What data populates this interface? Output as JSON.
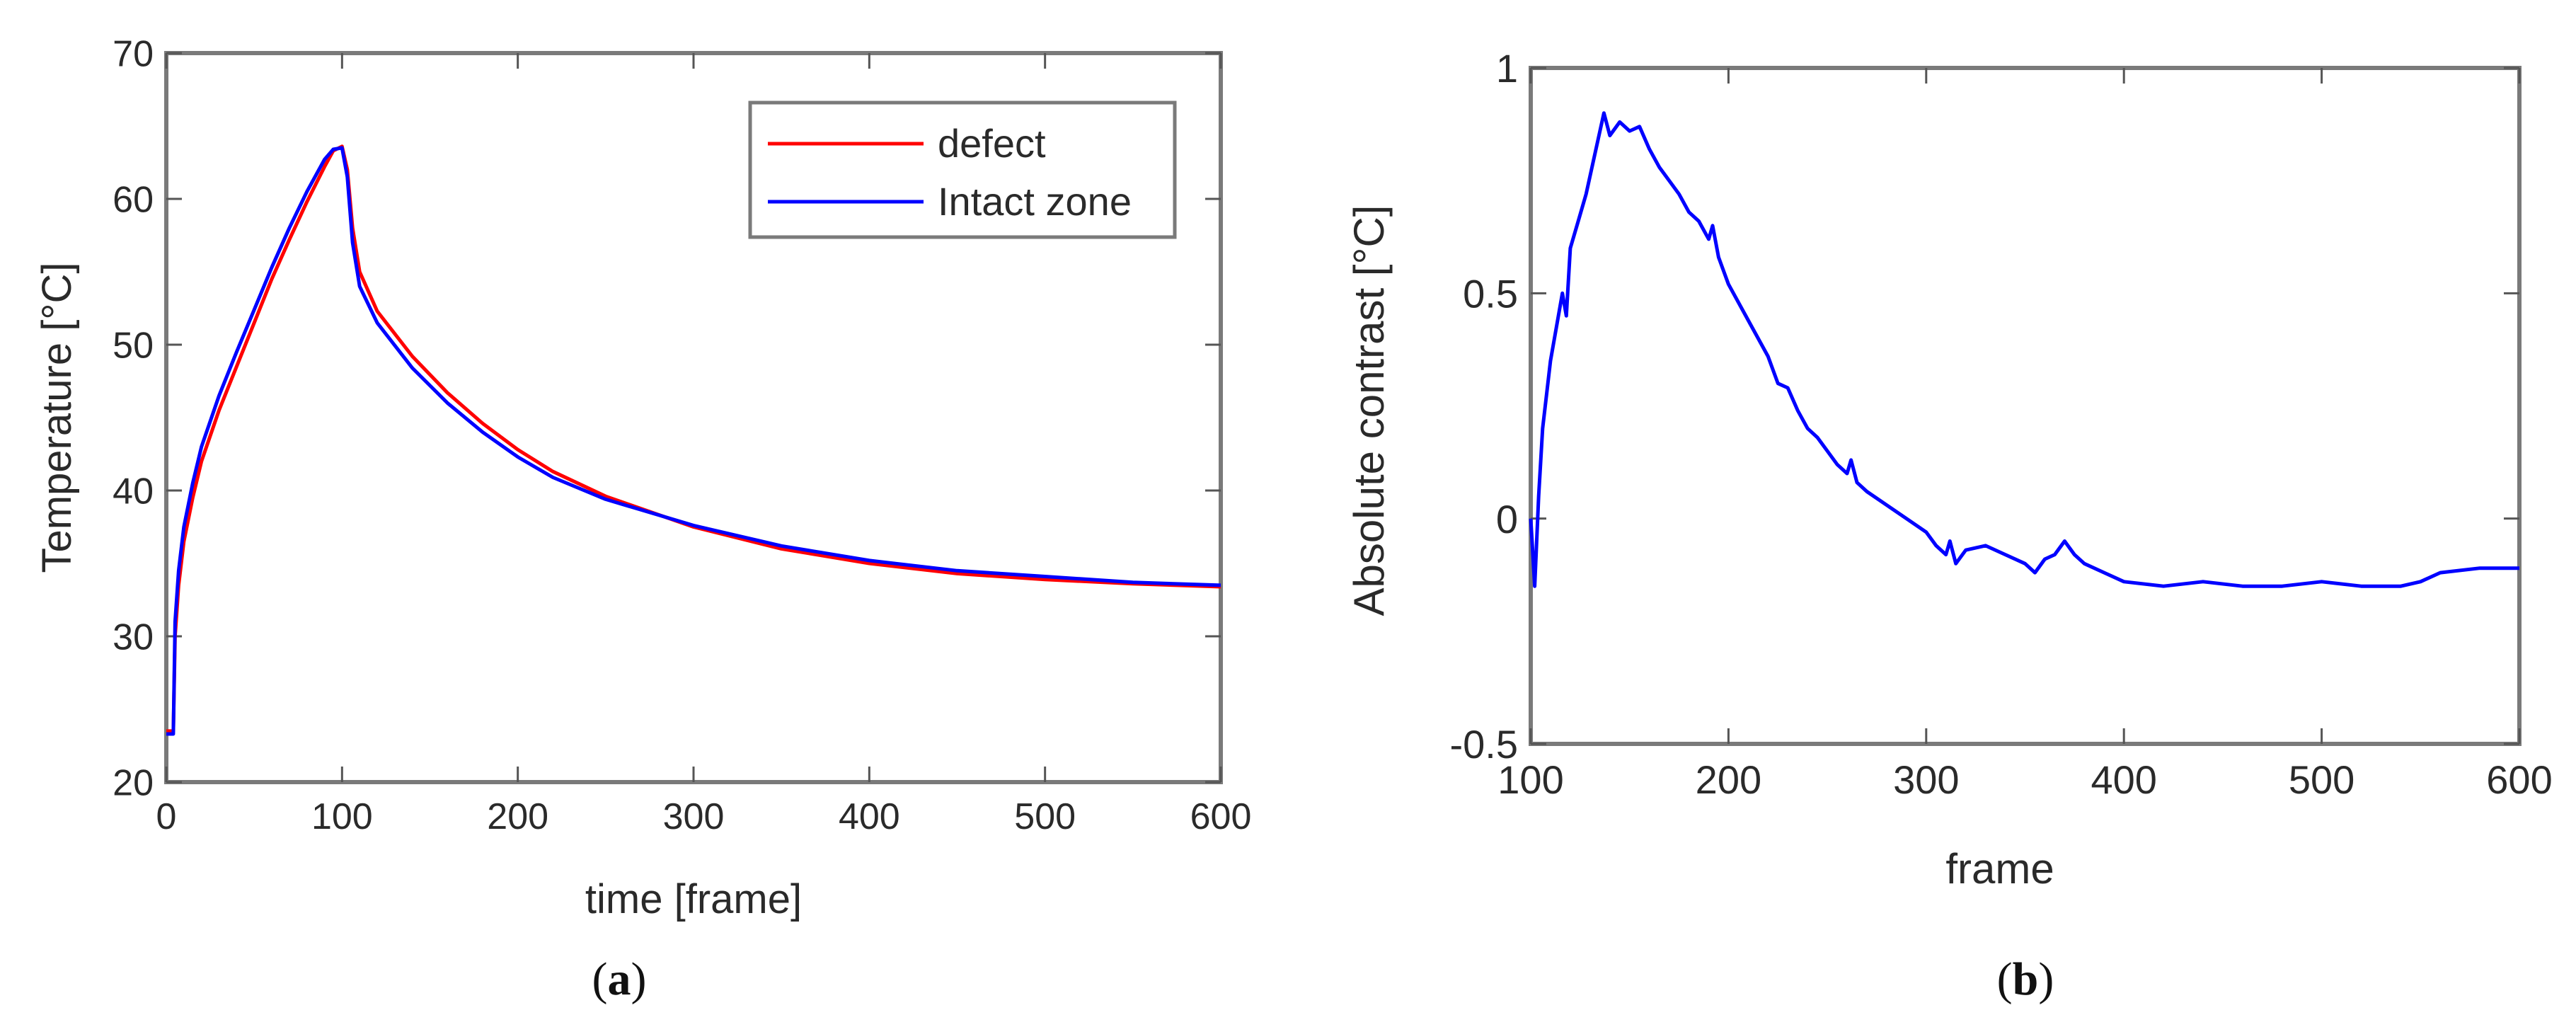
{
  "chart_data": [
    {
      "type": "line",
      "panel_label": "a",
      "title": "",
      "xlabel": "time [frame]",
      "ylabel": "Temperature [°C]",
      "xlim": [
        0,
        600
      ],
      "ylim": [
        20,
        70
      ],
      "xticks": [
        0,
        100,
        200,
        300,
        400,
        500,
        600
      ],
      "yticks": [
        20,
        30,
        40,
        50,
        60,
        70
      ],
      "legend": {
        "position": "top-right",
        "entries": [
          "defect",
          "Intact zone"
        ]
      },
      "grid": false,
      "series": [
        {
          "name": "defect",
          "color": "#ff0000",
          "points": [
            [
              0,
              23.5
            ],
            [
              4,
              23.5
            ],
            [
              5,
              30
            ],
            [
              7,
              33.5
            ],
            [
              10,
              36.5
            ],
            [
              15,
              39.5
            ],
            [
              20,
              42
            ],
            [
              30,
              45.5
            ],
            [
              40,
              48.5
            ],
            [
              50,
              51.5
            ],
            [
              60,
              54.5
            ],
            [
              70,
              57.2
            ],
            [
              80,
              59.8
            ],
            [
              90,
              62.2
            ],
            [
              95,
              63.3
            ],
            [
              100,
              63.6
            ],
            [
              103,
              62
            ],
            [
              106,
              58
            ],
            [
              110,
              55
            ],
            [
              120,
              52.3
            ],
            [
              140,
              49.2
            ],
            [
              160,
              46.7
            ],
            [
              180,
              44.6
            ],
            [
              200,
              42.8
            ],
            [
              220,
              41.3
            ],
            [
              250,
              39.6
            ],
            [
              300,
              37.5
            ],
            [
              350,
              36
            ],
            [
              400,
              35
            ],
            [
              450,
              34.3
            ],
            [
              500,
              33.9
            ],
            [
              550,
              33.6
            ],
            [
              600,
              33.4
            ]
          ]
        },
        {
          "name": "Intact zone",
          "color": "#0000ff",
          "points": [
            [
              0,
              23.3
            ],
            [
              4,
              23.3
            ],
            [
              5,
              31
            ],
            [
              7,
              34.5
            ],
            [
              10,
              37.5
            ],
            [
              15,
              40.5
            ],
            [
              20,
              43
            ],
            [
              30,
              46.5
            ],
            [
              40,
              49.5
            ],
            [
              50,
              52.4
            ],
            [
              60,
              55.3
            ],
            [
              70,
              58
            ],
            [
              80,
              60.5
            ],
            [
              90,
              62.7
            ],
            [
              95,
              63.4
            ],
            [
              100,
              63.5
            ],
            [
              103,
              61.5
            ],
            [
              106,
              57
            ],
            [
              110,
              54
            ],
            [
              120,
              51.5
            ],
            [
              140,
              48.4
            ],
            [
              160,
              46
            ],
            [
              180,
              44
            ],
            [
              200,
              42.3
            ],
            [
              220,
              40.9
            ],
            [
              250,
              39.4
            ],
            [
              300,
              37.6
            ],
            [
              350,
              36.2
            ],
            [
              400,
              35.2
            ],
            [
              450,
              34.5
            ],
            [
              500,
              34.1
            ],
            [
              550,
              33.7
            ],
            [
              600,
              33.5
            ]
          ]
        }
      ]
    },
    {
      "type": "line",
      "panel_label": "b",
      "title": "",
      "xlabel": "frame",
      "ylabel": "Absolute contrast [°C]",
      "xlim": [
        100,
        600
      ],
      "ylim": [
        -0.5,
        1
      ],
      "xticks": [
        100,
        200,
        300,
        400,
        500,
        600
      ],
      "yticks": [
        -0.5,
        0,
        0.5,
        1
      ],
      "ytick_labels": [
        "-0.5",
        "0",
        "0.5",
        "1"
      ],
      "grid": false,
      "series": [
        {
          "name": "Absolute contrast",
          "color": "#0000ff",
          "points": [
            [
              100,
              0
            ],
            [
              102,
              -0.15
            ],
            [
              104,
              0.05
            ],
            [
              106,
              0.2
            ],
            [
              110,
              0.35
            ],
            [
              114,
              0.45
            ],
            [
              116,
              0.5
            ],
            [
              118,
              0.45
            ],
            [
              120,
              0.6
            ],
            [
              124,
              0.66
            ],
            [
              128,
              0.72
            ],
            [
              132,
              0.8
            ],
            [
              135,
              0.86
            ],
            [
              137,
              0.9
            ],
            [
              140,
              0.85
            ],
            [
              145,
              0.88
            ],
            [
              150,
              0.86
            ],
            [
              155,
              0.87
            ],
            [
              160,
              0.82
            ],
            [
              165,
              0.78
            ],
            [
              170,
              0.75
            ],
            [
              175,
              0.72
            ],
            [
              180,
              0.68
            ],
            [
              185,
              0.66
            ],
            [
              190,
              0.62
            ],
            [
              192,
              0.65
            ],
            [
              195,
              0.58
            ],
            [
              200,
              0.52
            ],
            [
              210,
              0.44
            ],
            [
              220,
              0.36
            ],
            [
              225,
              0.3
            ],
            [
              230,
              0.29
            ],
            [
              235,
              0.24
            ],
            [
              240,
              0.2
            ],
            [
              245,
              0.18
            ],
            [
              250,
              0.15
            ],
            [
              255,
              0.12
            ],
            [
              260,
              0.1
            ],
            [
              262,
              0.13
            ],
            [
              265,
              0.08
            ],
            [
              270,
              0.06
            ],
            [
              280,
              0.03
            ],
            [
              290,
              0.0
            ],
            [
              300,
              -0.03
            ],
            [
              305,
              -0.06
            ],
            [
              310,
              -0.08
            ],
            [
              312,
              -0.05
            ],
            [
              315,
              -0.1
            ],
            [
              320,
              -0.07
            ],
            [
              330,
              -0.06
            ],
            [
              340,
              -0.08
            ],
            [
              350,
              -0.1
            ],
            [
              355,
              -0.12
            ],
            [
              360,
              -0.09
            ],
            [
              365,
              -0.08
            ],
            [
              370,
              -0.05
            ],
            [
              375,
              -0.08
            ],
            [
              380,
              -0.1
            ],
            [
              390,
              -0.12
            ],
            [
              400,
              -0.14
            ],
            [
              420,
              -0.15
            ],
            [
              440,
              -0.14
            ],
            [
              460,
              -0.15
            ],
            [
              480,
              -0.15
            ],
            [
              500,
              -0.14
            ],
            [
              520,
              -0.15
            ],
            [
              540,
              -0.15
            ],
            [
              550,
              -0.14
            ],
            [
              560,
              -0.12
            ],
            [
              580,
              -0.11
            ],
            [
              600,
              -0.11
            ]
          ]
        }
      ]
    }
  ]
}
